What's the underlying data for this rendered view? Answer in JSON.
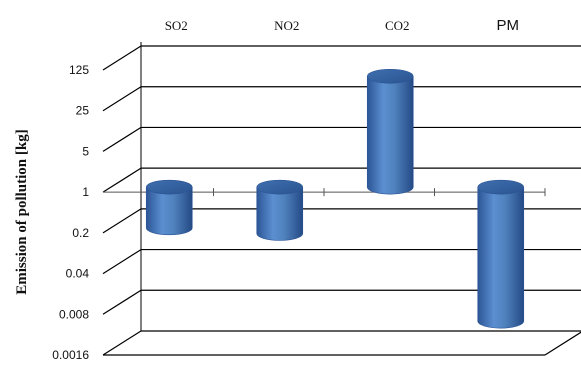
{
  "chart_data": {
    "type": "bar",
    "style": "3d-cylinder",
    "title": "",
    "xlabel": "",
    "ylabel": "Emission of pollution [kg]",
    "yscale": "log5",
    "ylim": [
      0.0016,
      125
    ],
    "baseline": 1,
    "yticks": [
      "125",
      "25",
      "5",
      "1",
      "0.2",
      "0.04",
      "0.008",
      "0.0016"
    ],
    "categories": [
      "SO2",
      "NO2",
      "CO2",
      "PM"
    ],
    "values": [
      0.2,
      0.16,
      80,
      0.005
    ],
    "grid": true,
    "legend": "none",
    "colors": {
      "bar": "#4f81bd",
      "bar_dark": "#2c5596",
      "bar_light": "#7da3d6",
      "grid": "#000000"
    }
  }
}
